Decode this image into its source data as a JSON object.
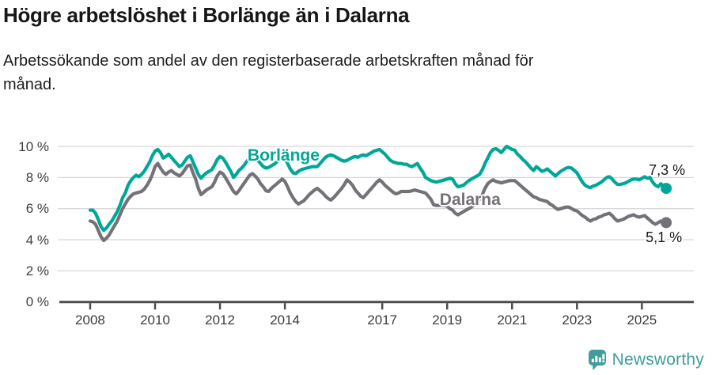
{
  "header": {
    "title": "Högre arbetslöshet i Borlänge än i Dalarna",
    "subtitle_line1": "Arbetssökande som andel av den registerbaserade arbetskraften månad för",
    "subtitle_line2": "månad."
  },
  "branding": {
    "logo_text": "Newsworthy",
    "logo_color": "#3f9e9b"
  },
  "chart_data": {
    "type": "line",
    "title": "Högre arbetslöshet i Borlänge än i Dalarna",
    "unit": "%",
    "grid": true,
    "grid_color": "#d8d8d8",
    "axis_color": "#4c4c4c",
    "y_range": [
      0,
      10
    ],
    "x_range": [
      2007.05,
      2026.6
    ],
    "y_tick_values": [
      0,
      2,
      4,
      6,
      8,
      10
    ],
    "y_tick_labels": [
      "0 %",
      "2 %",
      "4 %",
      "6 %",
      "8 %",
      "10 %"
    ],
    "x_tick_values": [
      2008,
      2010,
      2012,
      2014,
      2017,
      2019,
      2021,
      2023,
      2025
    ],
    "x_tick_labels": [
      "2008",
      "2010",
      "2012",
      "2014",
      "2017",
      "2019",
      "2021",
      "2023",
      "2025"
    ],
    "series": [
      {
        "name": "Borlänge",
        "color": "#00a798",
        "start_year": 2008,
        "end_label": "7,3 %",
        "end_value": 7.3,
        "label_pos": [
          2012.85,
          9.97
        ],
        "end_label_offset": [
          -22,
          -33
        ],
        "monthly_values": [
          5.9,
          5.9,
          5.7,
          5.3,
          4.85,
          4.6,
          4.75,
          5.0,
          5.2,
          5.5,
          5.8,
          6.2,
          6.7,
          7.0,
          7.5,
          7.8,
          8.0,
          8.15,
          8.05,
          8.2,
          8.4,
          8.7,
          9.0,
          9.4,
          9.7,
          9.8,
          9.6,
          9.25,
          9.35,
          9.5,
          9.3,
          9.1,
          8.9,
          8.7,
          8.8,
          9.05,
          9.3,
          9.4,
          9.0,
          8.6,
          8.2,
          7.95,
          8.15,
          8.3,
          8.4,
          8.5,
          8.8,
          9.15,
          9.35,
          9.25,
          9.0,
          8.7,
          8.4,
          8.0,
          8.2,
          8.45,
          8.6,
          8.8,
          9.05,
          9.3,
          9.4,
          9.35,
          9.1,
          8.9,
          8.7,
          8.6,
          8.65,
          8.75,
          8.85,
          9.0,
          9.15,
          9.3,
          9.2,
          8.9,
          8.55,
          8.3,
          8.25,
          8.4,
          8.5,
          8.55,
          8.6,
          8.65,
          8.7,
          8.7,
          8.7,
          8.9,
          9.1,
          9.3,
          9.4,
          9.45,
          9.4,
          9.3,
          9.2,
          9.1,
          9.05,
          9.1,
          9.2,
          9.3,
          9.35,
          9.3,
          9.4,
          9.45,
          9.4,
          9.5,
          9.6,
          9.7,
          9.75,
          9.8,
          9.65,
          9.5,
          9.3,
          9.1,
          9.0,
          8.95,
          8.9,
          8.9,
          8.85,
          8.85,
          8.75,
          8.7,
          8.8,
          8.9,
          8.6,
          8.35,
          8.0,
          7.9,
          7.8,
          7.75,
          7.7,
          7.75,
          7.8,
          7.85,
          7.9,
          7.95,
          7.9,
          7.6,
          7.4,
          7.45,
          7.5,
          7.65,
          7.8,
          7.9,
          8.0,
          8.1,
          8.2,
          8.5,
          8.9,
          9.25,
          9.6,
          9.8,
          9.85,
          9.75,
          9.6,
          9.8,
          10.0,
          9.9,
          9.8,
          9.75,
          9.5,
          9.35,
          9.15,
          9.0,
          8.8,
          8.6,
          8.45,
          8.7,
          8.55,
          8.4,
          8.45,
          8.55,
          8.4,
          8.25,
          8.1,
          8.25,
          8.4,
          8.5,
          8.6,
          8.65,
          8.6,
          8.45,
          8.3,
          8.0,
          7.7,
          7.5,
          7.4,
          7.35,
          7.45,
          7.5,
          7.6,
          7.7,
          7.85,
          8.0,
          8.05,
          7.9,
          7.7,
          7.55,
          7.55,
          7.6,
          7.65,
          7.75,
          7.85,
          7.9,
          7.9,
          7.85,
          7.95,
          8.05,
          7.95,
          8.0,
          7.7,
          7.5,
          7.4,
          7.6,
          7.45,
          7.3
        ]
      },
      {
        "name": "Dalarna",
        "color": "#757178",
        "start_year": 2008,
        "end_label": "5,1 %",
        "end_value": 5.1,
        "label_pos": [
          2018.77,
          7.1
        ],
        "end_label_offset": [
          -26,
          9
        ],
        "monthly_values": [
          5.2,
          5.15,
          5.0,
          4.6,
          4.2,
          3.95,
          4.1,
          4.3,
          4.6,
          4.9,
          5.2,
          5.6,
          6.0,
          6.3,
          6.6,
          6.8,
          6.95,
          7.0,
          7.05,
          7.1,
          7.25,
          7.5,
          7.8,
          8.2,
          8.7,
          8.9,
          8.6,
          8.35,
          8.2,
          8.35,
          8.45,
          8.3,
          8.2,
          8.1,
          8.25,
          8.5,
          8.75,
          8.8,
          8.3,
          7.9,
          7.3,
          6.9,
          7.05,
          7.2,
          7.3,
          7.4,
          7.7,
          8.1,
          8.35,
          8.25,
          8.0,
          7.7,
          7.4,
          7.1,
          6.95,
          7.15,
          7.4,
          7.65,
          7.9,
          8.15,
          8.25,
          8.1,
          7.9,
          7.6,
          7.4,
          7.15,
          7.1,
          7.3,
          7.45,
          7.6,
          7.75,
          7.9,
          7.75,
          7.4,
          7.0,
          6.7,
          6.45,
          6.3,
          6.4,
          6.5,
          6.7,
          6.9,
          7.05,
          7.2,
          7.3,
          7.15,
          7.0,
          6.8,
          6.65,
          6.55,
          6.7,
          6.9,
          7.1,
          7.3,
          7.55,
          7.85,
          7.7,
          7.5,
          7.2,
          7.0,
          6.8,
          6.7,
          6.9,
          7.1,
          7.3,
          7.5,
          7.7,
          7.85,
          7.7,
          7.5,
          7.35,
          7.2,
          7.05,
          6.95,
          7.0,
          7.1,
          7.1,
          7.1,
          7.1,
          7.15,
          7.2,
          7.15,
          7.1,
          7.05,
          7.0,
          6.8,
          6.6,
          6.25,
          6.2,
          6.2,
          6.2,
          6.2,
          6.15,
          6.0,
          5.9,
          5.7,
          5.6,
          5.7,
          5.8,
          5.9,
          6.0,
          6.1,
          6.25,
          6.4,
          6.6,
          6.9,
          7.3,
          7.6,
          7.75,
          7.85,
          7.75,
          7.7,
          7.65,
          7.7,
          7.75,
          7.8,
          7.8,
          7.8,
          7.65,
          7.5,
          7.35,
          7.2,
          7.05,
          6.9,
          6.75,
          6.7,
          6.6,
          6.55,
          6.5,
          6.45,
          6.3,
          6.2,
          6.05,
          5.95,
          6.0,
          6.05,
          6.1,
          6.1,
          6.0,
          5.9,
          5.85,
          5.7,
          5.55,
          5.45,
          5.3,
          5.2,
          5.3,
          5.35,
          5.45,
          5.5,
          5.6,
          5.65,
          5.7,
          5.55,
          5.35,
          5.2,
          5.25,
          5.3,
          5.4,
          5.5,
          5.55,
          5.6,
          5.5,
          5.45,
          5.5,
          5.55,
          5.4,
          5.25,
          5.1,
          5.0,
          5.1,
          5.2,
          5.1,
          5.1
        ]
      }
    ]
  }
}
